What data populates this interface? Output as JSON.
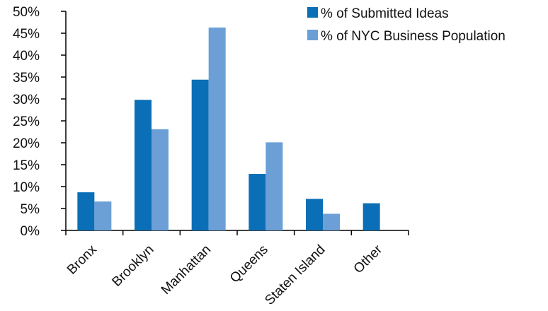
{
  "chart_data": {
    "type": "bar",
    "title": "",
    "xlabel": "",
    "ylabel": "",
    "categories": [
      "Bronx",
      "Brooklyn",
      "Manhattan",
      "Queens",
      "Staten Island",
      "Other"
    ],
    "series": [
      {
        "name": "% of Submitted Ideas",
        "color": "#0a6fb7",
        "values": [
          8.7,
          29.8,
          34.4,
          12.9,
          7.2,
          6.2
        ]
      },
      {
        "name": "% of NYC Business Population",
        "color": "#6b9fd6",
        "values": [
          6.6,
          23.1,
          46.3,
          20.1,
          3.8,
          null
        ]
      }
    ],
    "ylim": [
      0,
      50
    ],
    "yticks": [
      0,
      5,
      10,
      15,
      20,
      25,
      30,
      35,
      40,
      45,
      50
    ],
    "ytick_labels": [
      "0%",
      "5%",
      "10%",
      "15%",
      "20%",
      "25%",
      "30%",
      "35%",
      "40%",
      "45%",
      "50%"
    ],
    "grid": false,
    "legend_position": "top-right"
  }
}
